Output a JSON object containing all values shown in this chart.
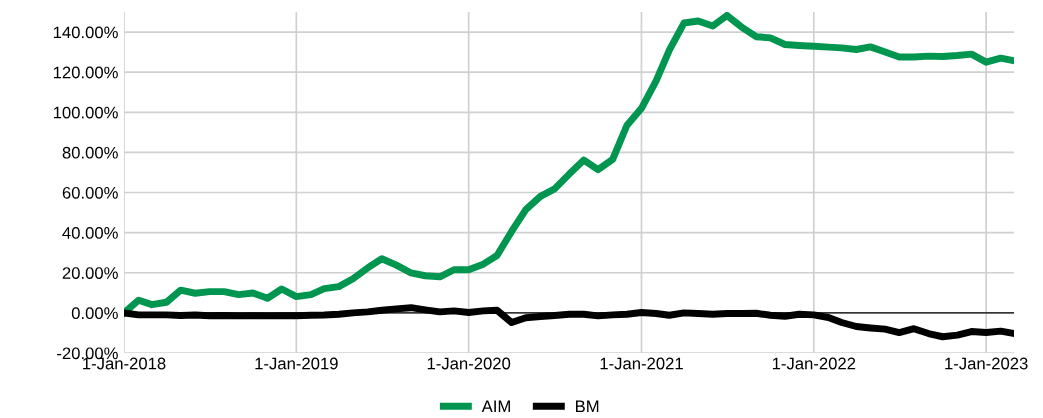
{
  "chart_data": {
    "type": "line",
    "x": [
      "2018-01-01",
      "2018-02-01",
      "2018-03-01",
      "2018-04-01",
      "2018-05-01",
      "2018-06-01",
      "2018-07-01",
      "2018-08-01",
      "2018-09-01",
      "2018-10-01",
      "2018-11-01",
      "2018-12-01",
      "2019-01-01",
      "2019-02-01",
      "2019-03-01",
      "2019-04-01",
      "2019-05-01",
      "2019-06-01",
      "2019-07-01",
      "2019-08-01",
      "2019-09-01",
      "2019-10-01",
      "2019-11-01",
      "2019-12-01",
      "2020-01-01",
      "2020-02-01",
      "2020-03-01",
      "2020-04-01",
      "2020-05-01",
      "2020-06-01",
      "2020-07-01",
      "2020-08-01",
      "2020-09-01",
      "2020-10-01",
      "2020-11-01",
      "2020-12-01",
      "2021-01-01",
      "2021-02-01",
      "2021-03-01",
      "2021-04-01",
      "2021-05-01",
      "2021-06-01",
      "2021-07-01",
      "2021-08-01",
      "2021-09-01",
      "2021-10-01",
      "2021-11-01",
      "2021-12-01",
      "2022-01-01",
      "2022-02-01",
      "2022-03-01",
      "2022-04-01",
      "2022-05-01",
      "2022-06-01",
      "2022-07-01",
      "2022-08-01",
      "2022-09-01",
      "2022-10-01",
      "2022-11-01",
      "2022-12-01",
      "2023-01-01",
      "2023-02-01",
      "2023-03-01"
    ],
    "series": [
      {
        "name": "AIM",
        "color": "#009650",
        "values": [
          0,
          6.3,
          4.1,
          5.3,
          11.3,
          9.8,
          10.6,
          10.6,
          9.1,
          9.9,
          7.3,
          11.9,
          8.1,
          9.1,
          12.1,
          13.1,
          17,
          22.4,
          27,
          23.8,
          19.9,
          18.5,
          18,
          21.5,
          21.5,
          24.3,
          28.6,
          40.6,
          51.5,
          58.1,
          61.8,
          69.2,
          76.2,
          71.4,
          76.5,
          93.4,
          102,
          115.7,
          131,
          144.5,
          145.5,
          143,
          148.3,
          142.5,
          137.7,
          137.1,
          133.8,
          133.3,
          132.9,
          132.5,
          132.1,
          131.3,
          132.6,
          130.1,
          127.6,
          127.6,
          128,
          127.8,
          128.3,
          129,
          125,
          127,
          125.7
        ]
      },
      {
        "name": "BM",
        "color": "#000000",
        "values": [
          0,
          -1,
          -1,
          -1,
          -1.3,
          -1.1,
          -1.4,
          -1.3,
          -1.5,
          -1.4,
          -1.5,
          -1.4,
          -1.4,
          -1.2,
          -1.1,
          -0.7,
          0,
          0.5,
          1.3,
          2,
          2.6,
          1.5,
          0.5,
          1,
          0.2,
          1,
          1.3,
          -4.8,
          -2.4,
          -1.8,
          -1.3,
          -0.7,
          -0.7,
          -1.5,
          -1,
          -0.7,
          0.2,
          -0.3,
          -1.2,
          0,
          -0.3,
          -0.7,
          -0.3,
          -0.3,
          -0.2,
          -1.2,
          -1.7,
          -0.7,
          -1,
          -2.3,
          -4.8,
          -6.8,
          -7.5,
          -8.1,
          -9.8,
          -7.9,
          -10.3,
          -11.9,
          -11.1,
          -9.3,
          -9.8,
          -9.1,
          -10.3
        ]
      }
    ],
    "xlim": [
      "2018-01-01",
      "2023-03-01"
    ],
    "xticks": [
      {
        "value": "2018-01-01",
        "label": "1-Jan-2018"
      },
      {
        "value": "2019-01-01",
        "label": "1-Jan-2019"
      },
      {
        "value": "2020-01-01",
        "label": "1-Jan-2020"
      },
      {
        "value": "2021-01-01",
        "label": "1-Jan-2021"
      },
      {
        "value": "2022-01-01",
        "label": "1-Jan-2022"
      },
      {
        "value": "2023-01-01",
        "label": "1-Jan-2023"
      }
    ],
    "ylim": [
      -20,
      150
    ],
    "yticks": [
      {
        "value": -20,
        "label": "-20.00%"
      },
      {
        "value": 0,
        "label": "0.00%"
      },
      {
        "value": 20,
        "label": "20.00%"
      },
      {
        "value": 40,
        "label": "40.00%"
      },
      {
        "value": 60,
        "label": "60.00%"
      },
      {
        "value": 80,
        "label": "80.00%"
      },
      {
        "value": 100,
        "label": "100.00%"
      },
      {
        "value": 120,
        "label": "120.00%"
      },
      {
        "value": 140,
        "label": "140.00%"
      }
    ],
    "ref_lines": [
      {
        "axis": "y",
        "value": 0,
        "color": "#000000"
      }
    ],
    "grid": true,
    "legend": "bottom",
    "marker": "none",
    "line_style": "solid"
  }
}
